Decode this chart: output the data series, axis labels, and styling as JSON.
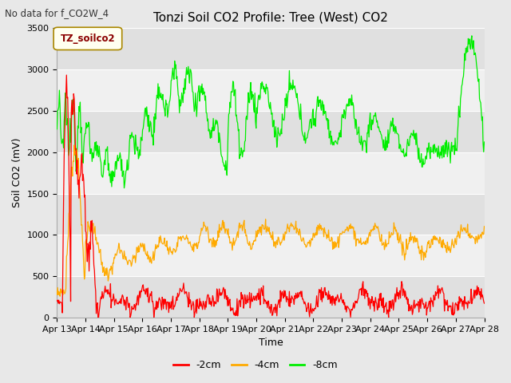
{
  "title": "Tonzi Soil CO2 Profile: Tree (West) CO2",
  "subtitle": "No data for f_CO2W_4",
  "ylabel": "Soil CO2 (mV)",
  "xlabel": "Time",
  "ylim": [
    0,
    3500
  ],
  "yticks": [
    0,
    500,
    1000,
    1500,
    2000,
    2500,
    3000,
    3500
  ],
  "x_labels": [
    "Apr 13",
    "Apr 14",
    "Apr 15",
    "Apr 16",
    "Apr 17",
    "Apr 18",
    "Apr 19",
    "Apr 20",
    "Apr 21",
    "Apr 22",
    "Apr 23",
    "Apr 24",
    "Apr 25",
    "Apr 26",
    "Apr 27",
    "Apr 28"
  ],
  "legend_label": "TZ_soilco2",
  "series_labels": [
    "-2cm",
    "-4cm",
    "-8cm"
  ],
  "color_2cm": "#ff0000",
  "color_4cm": "#ffaa00",
  "color_8cm": "#00ee00",
  "bg_color": "#e8e8e8",
  "stripe_light": "#f0f0f0",
  "stripe_dark": "#e0e0e0",
  "legend_box_facecolor": "#fffff0",
  "legend_box_edgecolor": "#cccc00",
  "legend_text_color": "#8b0000",
  "title_fontsize": 11,
  "axis_fontsize": 9,
  "tick_fontsize": 8
}
